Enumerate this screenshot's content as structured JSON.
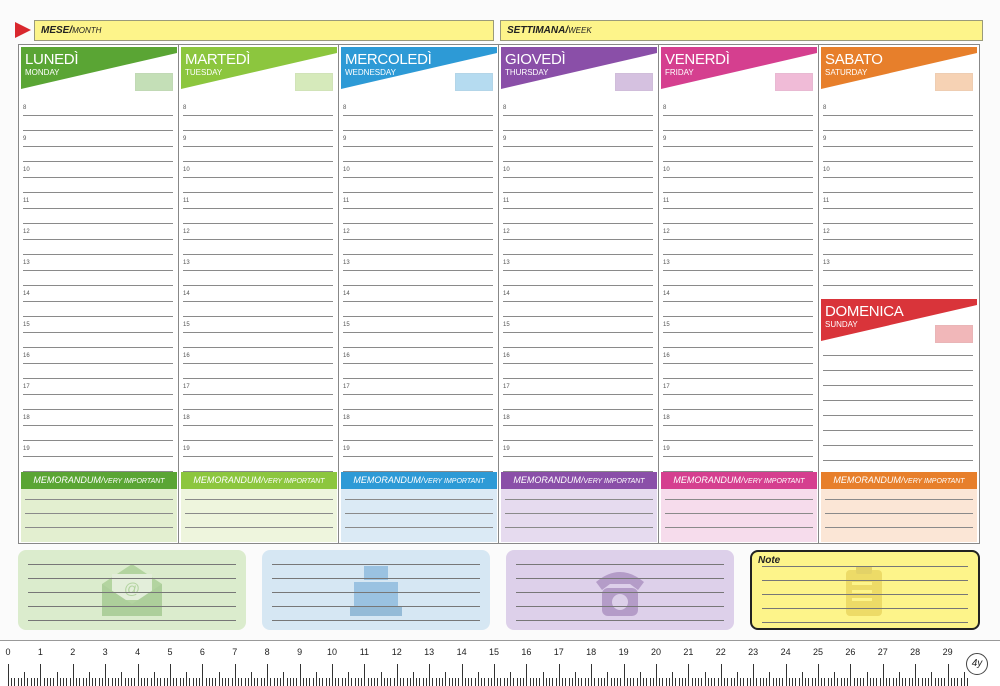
{
  "header": {
    "month_label": "MESE/",
    "month_sub": "MONTH",
    "week_label": "SETTIMANA/",
    "week_sub": "WEEK"
  },
  "days": [
    {
      "name": "LUNEDÌ",
      "eng": "MONDAY",
      "color": "#5aa534",
      "light": "#e3efd0"
    },
    {
      "name": "MARTEDÌ",
      "eng": "TUESDAY",
      "color": "#8cc63e",
      "light": "#eef5dd"
    },
    {
      "name": "MERCOLEDÌ",
      "eng": "WEDNESDAY",
      "color": "#2d9ad6",
      "light": "#dbeaf5"
    },
    {
      "name": "GIOVEDÌ",
      "eng": "THURSDAY",
      "color": "#8a4fa8",
      "light": "#e6dbef"
    },
    {
      "name": "VENERDÌ",
      "eng": "FRIDAY",
      "color": "#d53f8f",
      "light": "#f6dcec"
    },
    {
      "name": "SABATO",
      "eng": "SATURDAY",
      "color": "#e77f2b",
      "light": "#fbe6d6"
    },
    {
      "name": "DOMENICA",
      "eng": "SUNDAY",
      "color": "#d9343a",
      "light": "#f4d5d5"
    }
  ],
  "hours": [
    "8",
    "9",
    "10",
    "11",
    "12",
    "13",
    "14",
    "15",
    "16",
    "17",
    "18",
    "19"
  ],
  "memo": {
    "label": "MEMORANDUM/",
    "sub": "VERY IMPORTANT"
  },
  "note_label": "Note",
  "bottom_icons": [
    "envelope-icon",
    "cash-register-icon",
    "telephone-icon",
    "clipboard-icon"
  ],
  "ruler_numbers": [
    "0",
    "1",
    "2",
    "3",
    "4",
    "5",
    "6",
    "7",
    "8",
    "9",
    "10",
    "11",
    "12",
    "13",
    "14",
    "15",
    "16",
    "17",
    "18",
    "19",
    "20",
    "21",
    "22",
    "23",
    "24",
    "25",
    "26",
    "27",
    "28",
    "29"
  ],
  "logo_text": "4y"
}
